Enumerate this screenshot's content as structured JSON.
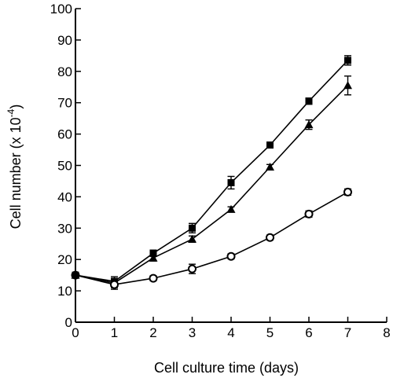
{
  "chart_data": {
    "type": "line",
    "title": "",
    "xlabel": "Cell culture time (days)",
    "ylabel_parts": {
      "before": "Cell number (x 10",
      "exponent": "-4",
      "after": ")"
    },
    "xlim": [
      0,
      8
    ],
    "ylim": [
      0,
      100
    ],
    "x_ticks": [
      "0",
      "1",
      "2",
      "3",
      "4",
      "5",
      "6",
      "7",
      "8"
    ],
    "y_ticks": [
      "0",
      "10",
      "20",
      "30",
      "40",
      "50",
      "60",
      "70",
      "80",
      "90",
      "100"
    ],
    "grid": false,
    "legend": "none",
    "x": [
      0,
      1,
      2,
      3,
      4,
      5,
      6,
      7
    ],
    "series": [
      {
        "marker": "filled-square",
        "values": [
          15,
          13,
          22,
          30,
          44.5,
          56.5,
          70.5,
          83.5
        ],
        "errors": [
          0,
          1.5,
          1,
          1.5,
          2,
          0.8,
          1,
          1.5
        ]
      },
      {
        "marker": "filled-triangle",
        "values": [
          15,
          12.5,
          20.5,
          26.5,
          36,
          49.5,
          63,
          75.5
        ],
        "errors": [
          0,
          1.5,
          1,
          1,
          0.8,
          0.8,
          1.5,
          3
        ]
      },
      {
        "marker": "open-circle",
        "values": [
          15,
          12,
          14,
          17,
          21,
          27,
          34.5,
          41.5
        ],
        "errors": [
          0,
          1.5,
          0.8,
          1.5,
          0.8,
          0.8,
          1,
          1
        ]
      }
    ]
  }
}
